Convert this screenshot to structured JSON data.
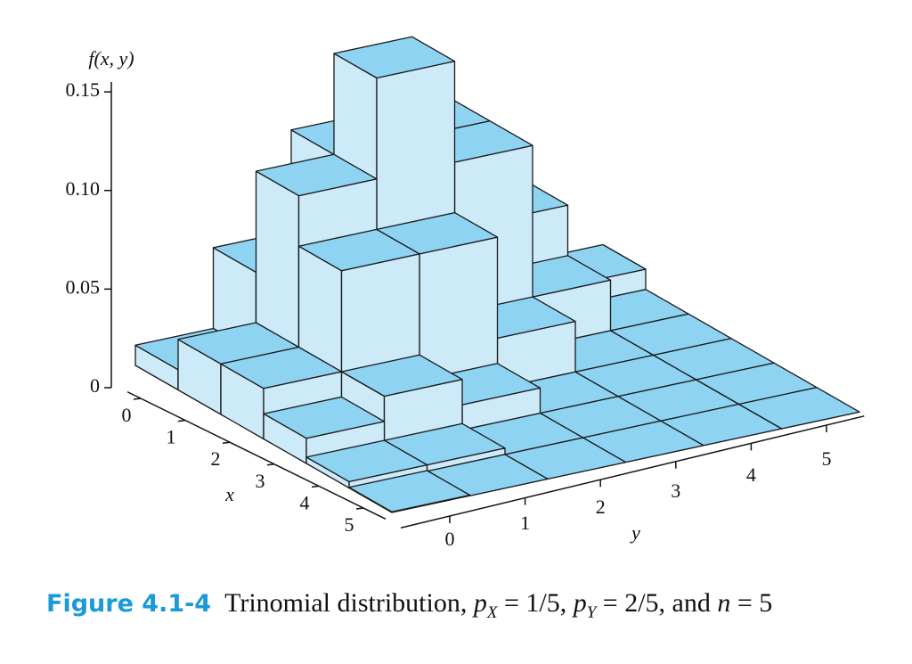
{
  "chart_data": {
    "type": "bar3d",
    "zlabel": "f(x, y)",
    "xlabel": "x",
    "ylabel": "y",
    "x": [
      0,
      1,
      2,
      3,
      4,
      5
    ],
    "y": [
      0,
      1,
      2,
      3,
      4,
      5
    ],
    "xticks": [
      0,
      1,
      2,
      3,
      4,
      5
    ],
    "yticks": [
      0,
      1,
      2,
      3,
      4,
      5
    ],
    "zlim": [
      0,
      0.155
    ],
    "zticks": [
      0,
      0.05,
      {
        "value": 0.1,
        "label": "0.10"
      },
      0.15
    ],
    "top_color": "#8ed4f2",
    "side_color": "#cdeaf9",
    "values": [
      [
        0.01024,
        0.0512,
        0.1024,
        0.1024,
        0.0512,
        0.01024
      ],
      [
        0.0256,
        0.1024,
        0.1536,
        0.1024,
        0.0256,
        0
      ],
      [
        0.0256,
        0.0768,
        0.0768,
        0.0256,
        0,
        0
      ],
      [
        0.0128,
        0.0256,
        0.0128,
        0,
        0,
        0
      ],
      [
        0.0032,
        0.0032,
        0,
        0,
        0,
        0
      ],
      [
        0.00032,
        0,
        0,
        0,
        0,
        0
      ]
    ]
  },
  "caption": {
    "label": "Figure 4.1-4",
    "text": "Trinomial distribution,",
    "p": "p",
    "sub_x": "X",
    "eq_x": "= 1/5,",
    "sub_y": "Y",
    "eq_y": "= 2/5, and",
    "n": "n",
    "eq_n": "= 5"
  }
}
